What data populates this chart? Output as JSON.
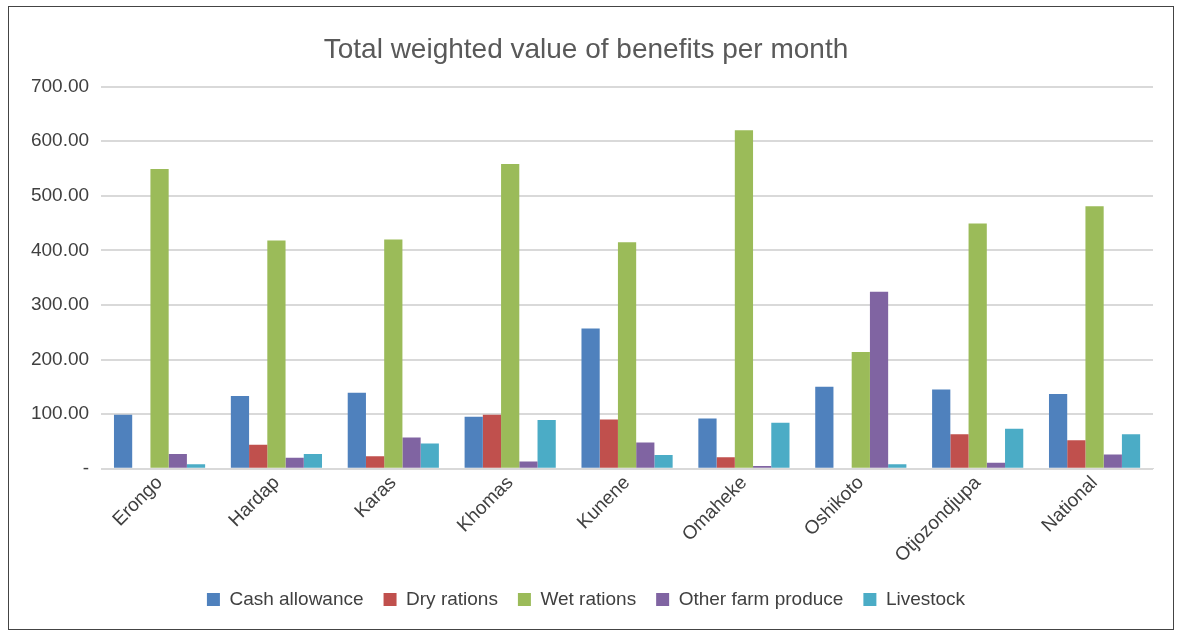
{
  "chart_data": {
    "type": "bar",
    "title": "Total weighted value of benefits per month",
    "categories": [
      "Erongo",
      "Hardap",
      "Karas",
      "Khomas",
      "Kunene",
      "Omaheke",
      "Oshikoto",
      "Otjozondjupa",
      "National"
    ],
    "series": [
      {
        "name": "Cash allowance",
        "color": "#4f81bd",
        "values": [
          99,
          133,
          139,
          95,
          257,
          92,
          150,
          145,
          137
        ]
      },
      {
        "name": "Dry rations",
        "color": "#c0504d",
        "values": [
          0,
          44,
          23,
          99,
          90,
          21,
          0,
          63,
          52
        ]
      },
      {
        "name": "Wet rations",
        "color": "#9bbb59",
        "values": [
          549,
          418,
          420,
          558,
          415,
          620,
          214,
          449,
          481
        ]
      },
      {
        "name": "Other farm produce",
        "color": "#8064a2",
        "values": [
          27,
          20,
          57,
          13,
          48,
          5,
          324,
          11,
          26
        ]
      },
      {
        "name": "Livestock",
        "color": "#4bacc6",
        "values": [
          8,
          27,
          46,
          89,
          25,
          84,
          8,
          73,
          63
        ]
      }
    ],
    "ylim": [
      0,
      700
    ],
    "yticks": [
      {
        "value": 0,
        "label": "-"
      },
      {
        "value": 100,
        "label": "100.00"
      },
      {
        "value": 200,
        "label": "200.00"
      },
      {
        "value": 300,
        "label": "300.00"
      },
      {
        "value": 400,
        "label": "400.00"
      },
      {
        "value": 500,
        "label": "500.00"
      },
      {
        "value": 600,
        "label": "600.00"
      },
      {
        "value": 700,
        "label": "700.00"
      }
    ],
    "grid": "y",
    "legend": "bottom"
  }
}
